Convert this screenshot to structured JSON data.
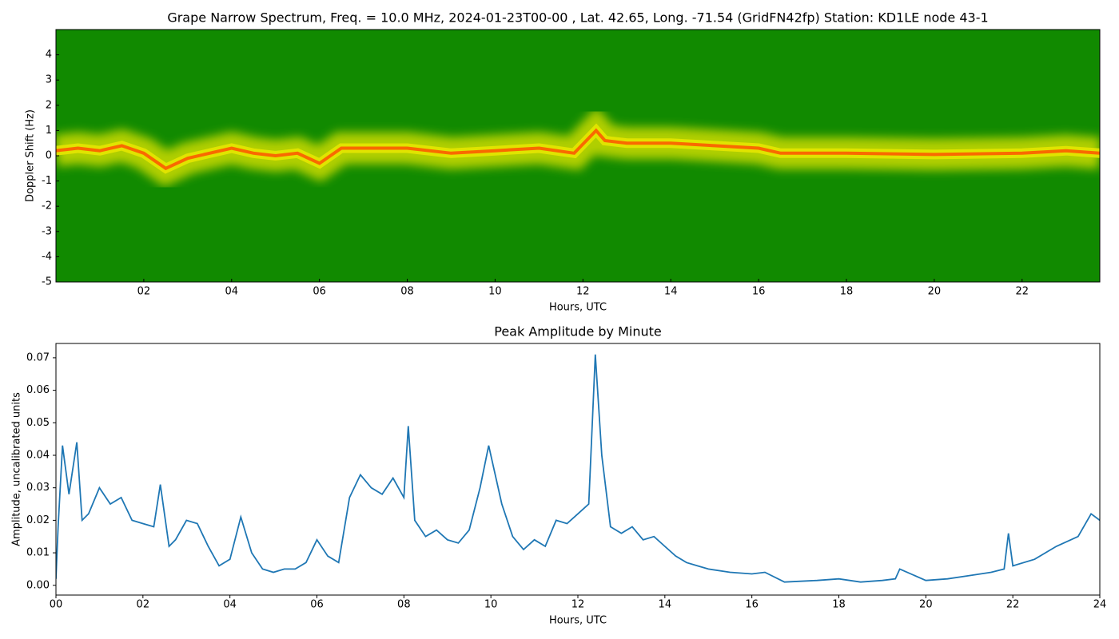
{
  "chart_data": [
    {
      "type": "spectrogram",
      "title": "Grape Narrow Spectrum, Freq. = 10.0 MHz, 2024-01-23T00-00 , Lat.  42.65, Long. -71.54 (GridFN42fp) Station: KD1LE node 43-1",
      "x_label": "Hours, UTC",
      "y_label": "Doppler Shift (Hz)",
      "xlim": [
        0,
        23.77
      ],
      "ylim": [
        -5,
        5
      ],
      "xticks": [
        {
          "value": 2,
          "label": "02"
        },
        {
          "value": 4,
          "label": "04"
        },
        {
          "value": 6,
          "label": "06"
        },
        {
          "value": 8,
          "label": "08"
        },
        {
          "value": 10,
          "label": "10"
        },
        {
          "value": 12,
          "label": "12"
        },
        {
          "value": 14,
          "label": "14"
        },
        {
          "value": 16,
          "label": "16"
        },
        {
          "value": 18,
          "label": "18"
        },
        {
          "value": 20,
          "label": "20"
        },
        {
          "value": 22,
          "label": "22"
        }
      ],
      "yticks": [
        -5,
        -4,
        -3,
        -2,
        -1,
        0,
        1,
        2,
        3,
        4
      ],
      "background_color": "#118a00",
      "band_color": "#e6e600",
      "color": "#ff4a00",
      "x": [
        0,
        0.5,
        1,
        1.5,
        2,
        2.5,
        3,
        3.5,
        4,
        4.5,
        5,
        5.5,
        6,
        6.5,
        7,
        8,
        9,
        10,
        11,
        11.8,
        12.3,
        12.5,
        13,
        14,
        15,
        16,
        16.5,
        18,
        20,
        22,
        23,
        23.77
      ],
      "values": [
        0.2,
        0.3,
        0.2,
        0.4,
        0.1,
        -0.5,
        -0.1,
        0.1,
        0.3,
        0.1,
        0,
        0.1,
        -0.3,
        0.3,
        0.3,
        0.3,
        0.1,
        0.2,
        0.3,
        0.1,
        1.0,
        0.6,
        0.5,
        0.5,
        0.4,
        0.3,
        0.1,
        0.1,
        0.05,
        0.1,
        0.2,
        0.1
      ]
    },
    {
      "type": "line",
      "title": "Peak Amplitude by Minute",
      "x_label": "Hours, UTC",
      "y_label": "Amplitude, uncalibrated units",
      "xlim": [
        0,
        24
      ],
      "ylim": [
        -0.003,
        0.0744
      ],
      "xticks": [
        {
          "value": 0,
          "label": "00"
        },
        {
          "value": 2,
          "label": "02"
        },
        {
          "value": 4,
          "label": "04"
        },
        {
          "value": 6,
          "label": "06"
        },
        {
          "value": 8,
          "label": "08"
        },
        {
          "value": 10,
          "label": "10"
        },
        {
          "value": 12,
          "label": "12"
        },
        {
          "value": 14,
          "label": "14"
        },
        {
          "value": 16,
          "label": "16"
        },
        {
          "value": 18,
          "label": "18"
        },
        {
          "value": 20,
          "label": "20"
        },
        {
          "value": 22,
          "label": "22"
        },
        {
          "value": 24,
          "label": "24"
        }
      ],
      "yticks": [
        {
          "value": 0,
          "label": "0.00"
        },
        0.01,
        0.02,
        0.03,
        0.04,
        0.05,
        0.06,
        0.07
      ],
      "color": "#1f77b4",
      "x": [
        0,
        0.05,
        0.15,
        0.3,
        0.48,
        0.6,
        0.75,
        1.0,
        1.25,
        1.5,
        1.75,
        2.0,
        2.25,
        2.4,
        2.6,
        2.75,
        3.0,
        3.25,
        3.5,
        3.75,
        4.0,
        4.25,
        4.5,
        4.75,
        5.0,
        5.25,
        5.5,
        5.75,
        6.0,
        6.25,
        6.5,
        6.75,
        7.0,
        7.25,
        7.5,
        7.75,
        8.0,
        8.1,
        8.25,
        8.5,
        8.75,
        9.0,
        9.25,
        9.5,
        9.75,
        9.95,
        10.25,
        10.5,
        10.75,
        11.0,
        11.25,
        11.5,
        11.75,
        12.0,
        12.25,
        12.4,
        12.55,
        12.75,
        13.0,
        13.25,
        13.5,
        13.75,
        14.0,
        14.25,
        14.5,
        14.75,
        15.0,
        15.5,
        16.0,
        16.3,
        16.75,
        17.5,
        18.0,
        18.5,
        19.0,
        19.3,
        19.4,
        20.0,
        20.5,
        21.0,
        21.5,
        21.8,
        21.9,
        22.0,
        22.5,
        23.0,
        23.5,
        23.8,
        24.0
      ],
      "values": [
        0.002,
        0.018,
        0.043,
        0.028,
        0.044,
        0.02,
        0.022,
        0.03,
        0.025,
        0.027,
        0.02,
        0.019,
        0.018,
        0.031,
        0.012,
        0.014,
        0.02,
        0.019,
        0.012,
        0.006,
        0.008,
        0.021,
        0.01,
        0.005,
        0.004,
        0.005,
        0.005,
        0.007,
        0.014,
        0.009,
        0.007,
        0.027,
        0.034,
        0.03,
        0.028,
        0.033,
        0.027,
        0.049,
        0.02,
        0.015,
        0.017,
        0.014,
        0.013,
        0.017,
        0.03,
        0.043,
        0.025,
        0.015,
        0.011,
        0.014,
        0.012,
        0.02,
        0.019,
        0.022,
        0.025,
        0.071,
        0.04,
        0.018,
        0.016,
        0.018,
        0.014,
        0.015,
        0.012,
        0.009,
        0.007,
        0.006,
        0.005,
        0.004,
        0.0035,
        0.004,
        0.001,
        0.0015,
        0.002,
        0.001,
        0.0015,
        0.002,
        0.005,
        0.0015,
        0.002,
        0.003,
        0.004,
        0.005,
        0.016,
        0.006,
        0.008,
        0.012,
        0.015,
        0.022,
        0.02
      ]
    }
  ]
}
